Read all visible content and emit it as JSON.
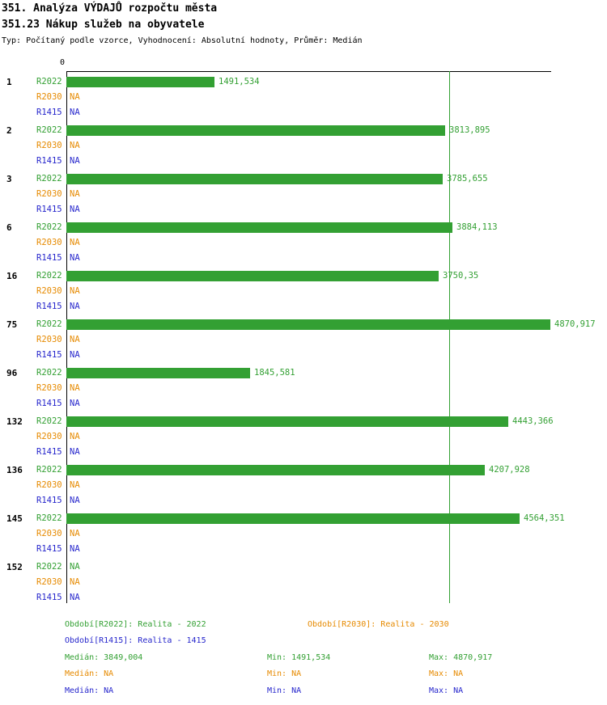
{
  "header": {
    "title": "351. Analýza VÝDAJŮ rozpočtu města",
    "subtitle": "351.23 Nákup služeb na obyvatele",
    "meta": "Typ: Počítaný podle vzorce, Vyhodnocení: Absolutní hodnoty, Průměr: Medián"
  },
  "colors": {
    "green": "#33a033",
    "orange": "#e68a00",
    "blue": "#2626cc",
    "axis": "#000000"
  },
  "chart_data": {
    "type": "bar",
    "orientation": "horizontal",
    "x_axis_zero_label": "0",
    "xlim": [
      0,
      4870.917
    ],
    "median_value": 3849.004,
    "grid": false,
    "categories": [
      "1",
      "2",
      "3",
      "6",
      "16",
      "75",
      "96",
      "132",
      "136",
      "145",
      "152"
    ],
    "series": [
      {
        "name": "R2022",
        "color_key": "green",
        "values": [
          1491.534,
          3813.895,
          3785.655,
          3884.113,
          3750.35,
          4870.917,
          1845.581,
          4443.366,
          4207.928,
          4564.351,
          null
        ],
        "value_labels": [
          "1491,534",
          "3813,895",
          "3785,655",
          "3884,113",
          "3750,35",
          "4870,917",
          "1845,581",
          "4443,366",
          "4207,928",
          "4564,351",
          "NA"
        ]
      },
      {
        "name": "R2030",
        "color_key": "orange",
        "values": [
          null,
          null,
          null,
          null,
          null,
          null,
          null,
          null,
          null,
          null,
          null
        ],
        "value_labels": [
          "NA",
          "NA",
          "NA",
          "NA",
          "NA",
          "NA",
          "NA",
          "NA",
          "NA",
          "NA",
          "NA"
        ]
      },
      {
        "name": "R1415",
        "color_key": "blue",
        "values": [
          null,
          null,
          null,
          null,
          null,
          null,
          null,
          null,
          null,
          null,
          null
        ],
        "value_labels": [
          "NA",
          "NA",
          "NA",
          "NA",
          "NA",
          "NA",
          "NA",
          "NA",
          "NA",
          "NA",
          "NA"
        ]
      }
    ]
  },
  "legend": {
    "r2022": "Období[R2022]: Realita - 2022",
    "r2030": "Období[R2030]: Realita - 2030",
    "r1415": "Období[R1415]: Realita - 1415"
  },
  "stats": {
    "r2022": {
      "median": "Medián: 3849,004",
      "min": "Min: 1491,534",
      "max": "Max: 4870,917"
    },
    "r2030": {
      "median": "Medián: NA",
      "min": "Min: NA",
      "max": "Max: NA"
    },
    "r1415": {
      "median": "Medián: NA",
      "min": "Min: NA",
      "max": "Max: NA"
    }
  }
}
